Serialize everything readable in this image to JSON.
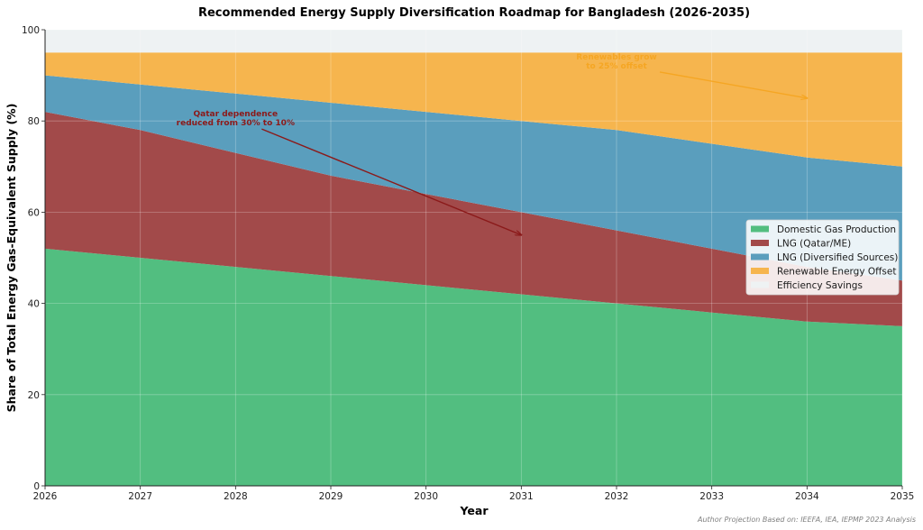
{
  "chart_data": {
    "type": "area",
    "stacked": true,
    "title": "Recommended Energy Supply Diversification Roadmap for Bangladesh (2026-2035)",
    "xlabel": "Year",
    "ylabel": "Share of Total Energy Gas-Equivalent Supply (%)",
    "x": [
      2026,
      2027,
      2028,
      2029,
      2030,
      2031,
      2032,
      2033,
      2034,
      2035
    ],
    "xlim": [
      2026,
      2035
    ],
    "ylim": [
      0,
      100
    ],
    "xticks": [
      "2026",
      "2027",
      "2028",
      "2029",
      "2030",
      "2031",
      "2032",
      "2033",
      "2034",
      "2035"
    ],
    "yticks": [
      "0",
      "20",
      "40",
      "60",
      "80",
      "100"
    ],
    "ytick_values": [
      0,
      20,
      40,
      60,
      80,
      100
    ],
    "grid": true,
    "legend_position": "center-right",
    "series": [
      {
        "name": "Domestic Gas Production",
        "color": "#52be80",
        "values": [
          52,
          50,
          48,
          46,
          44,
          42,
          40,
          38,
          36,
          35
        ]
      },
      {
        "name": "LNG (Qatar/ME)",
        "color": "#a24a4a",
        "values": [
          30,
          28,
          25,
          22,
          20,
          18,
          16,
          14,
          12,
          10
        ]
      },
      {
        "name": "LNG (Diversified Sources)",
        "color": "#5a9ebd",
        "values": [
          8,
          10,
          13,
          16,
          18,
          20,
          22,
          23,
          24,
          25
        ]
      },
      {
        "name": "Renewable Energy Offset",
        "color": "#f6b54e",
        "values": [
          5,
          7,
          9,
          11,
          13,
          15,
          17,
          20,
          23,
          25
        ]
      },
      {
        "name": "Efficiency Savings",
        "color": "#eef2f3",
        "values": [
          5,
          5,
          5,
          5,
          5,
          5,
          5,
          5,
          5,
          5
        ]
      }
    ],
    "annotations": [
      {
        "text_lines": [
          "Qatar dependence",
          "reduced from 30% to 10%"
        ],
        "color": "#8b1a1a",
        "text_at": [
          2028,
          81
        ],
        "arrow_to": [
          2031,
          55
        ]
      },
      {
        "text_lines": [
          "Renewables grow",
          "to 25% offset"
        ],
        "color": "#f5a623",
        "text_at": [
          2032,
          93.5
        ],
        "arrow_to": [
          2034,
          85
        ]
      }
    ],
    "footer": "Author Projection Based on: IEEFA, IEA, IEPMP 2023 Analysis"
  }
}
